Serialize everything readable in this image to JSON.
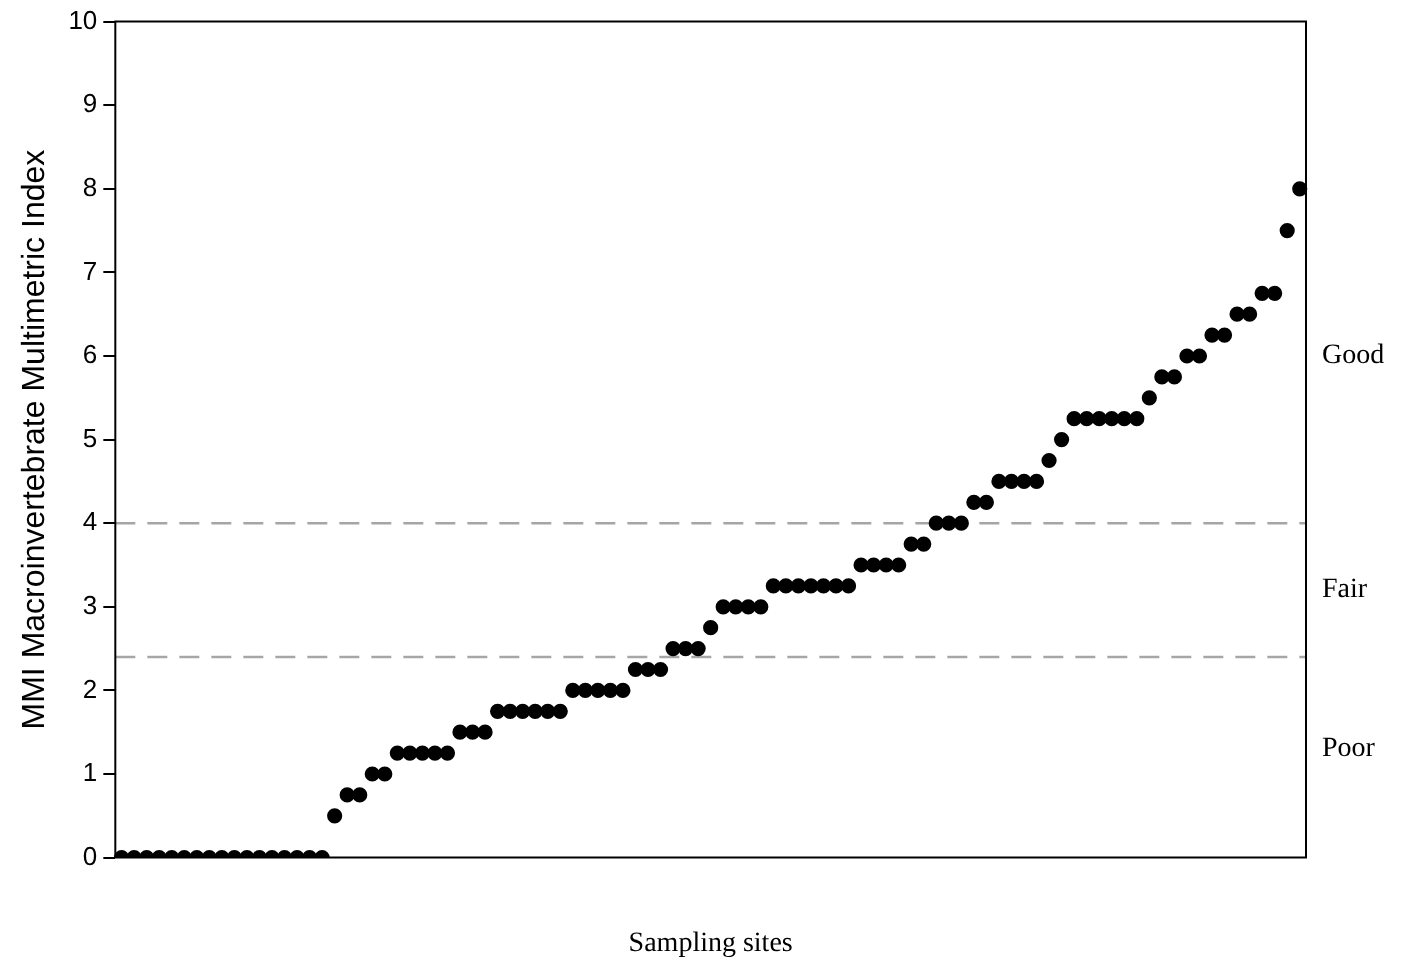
{
  "chart_data": {
    "type": "scatter",
    "ylabel": "MMI Macroinvertebrate Multimetric Index",
    "xlabel": "Sampling sites",
    "categories": [
      null,
      null,
      null,
      null,
      null,
      null,
      null,
      null,
      null,
      null,
      null,
      null,
      null,
      null,
      null,
      null,
      null,
      null,
      null,
      null,
      null,
      null,
      null,
      null,
      null,
      null,
      null,
      null,
      null,
      null,
      null,
      null,
      null,
      null,
      null,
      null,
      null,
      null,
      null,
      null,
      null,
      null,
      null,
      null,
      null,
      null,
      null,
      null,
      null,
      null,
      null,
      null,
      null,
      null,
      null,
      null,
      null,
      null,
      null,
      null,
      null,
      null,
      null,
      null,
      null,
      null,
      null,
      null,
      null,
      null,
      null,
      null,
      null,
      null,
      null,
      null,
      null,
      null,
      null,
      null,
      null,
      null,
      null,
      null,
      null,
      null,
      null,
      null,
      null,
      null,
      null,
      null,
      null,
      null,
      null
    ],
    "series": [
      {
        "color": "#000000",
        "values": [
          0,
          0,
          0,
          0,
          0,
          0,
          0,
          0,
          0,
          0,
          0,
          0,
          0,
          0,
          0,
          0,
          0,
          0.5,
          0.75,
          0.75,
          1,
          1,
          1.25,
          1.25,
          1.25,
          1.25,
          1.25,
          1.5,
          1.5,
          1.5,
          1.75,
          1.75,
          1.75,
          1.75,
          1.75,
          1.75,
          2,
          2,
          2,
          2,
          2,
          2.25,
          2.25,
          2.25,
          2.5,
          2.5,
          2.5,
          2.75,
          3,
          3,
          3,
          3,
          3.25,
          3.25,
          3.25,
          3.25,
          3.25,
          3.25,
          3.25,
          3.5,
          3.5,
          3.5,
          3.5,
          3.75,
          3.75,
          4,
          4,
          4,
          4.25,
          4.25,
          4.5,
          4.5,
          4.5,
          4.5,
          4.75,
          5,
          5.25,
          5.25,
          5.25,
          5.25,
          5.25,
          5.25,
          5.5,
          5.75,
          5.75,
          6,
          6,
          6.25,
          6.25,
          6.5,
          6.5,
          6.75,
          6.75,
          7.5,
          8
        ]
      }
    ],
    "ylim": [
      0,
      10
    ],
    "yticks": [
      0,
      1,
      2,
      3,
      4,
      5,
      6,
      7,
      8,
      9,
      10
    ],
    "marker": "circle",
    "grid": false,
    "legend": false,
    "ref_lines": [
      {
        "axis": "y",
        "value": 4,
        "color": "#a6a6a6",
        "line_style": "dashed"
      },
      {
        "axis": "y",
        "value": 2.4,
        "color": "#a6a6a6",
        "line_style": "dashed"
      }
    ],
    "annotations": [
      "Good",
      "Fair",
      "Poor"
    ]
  }
}
